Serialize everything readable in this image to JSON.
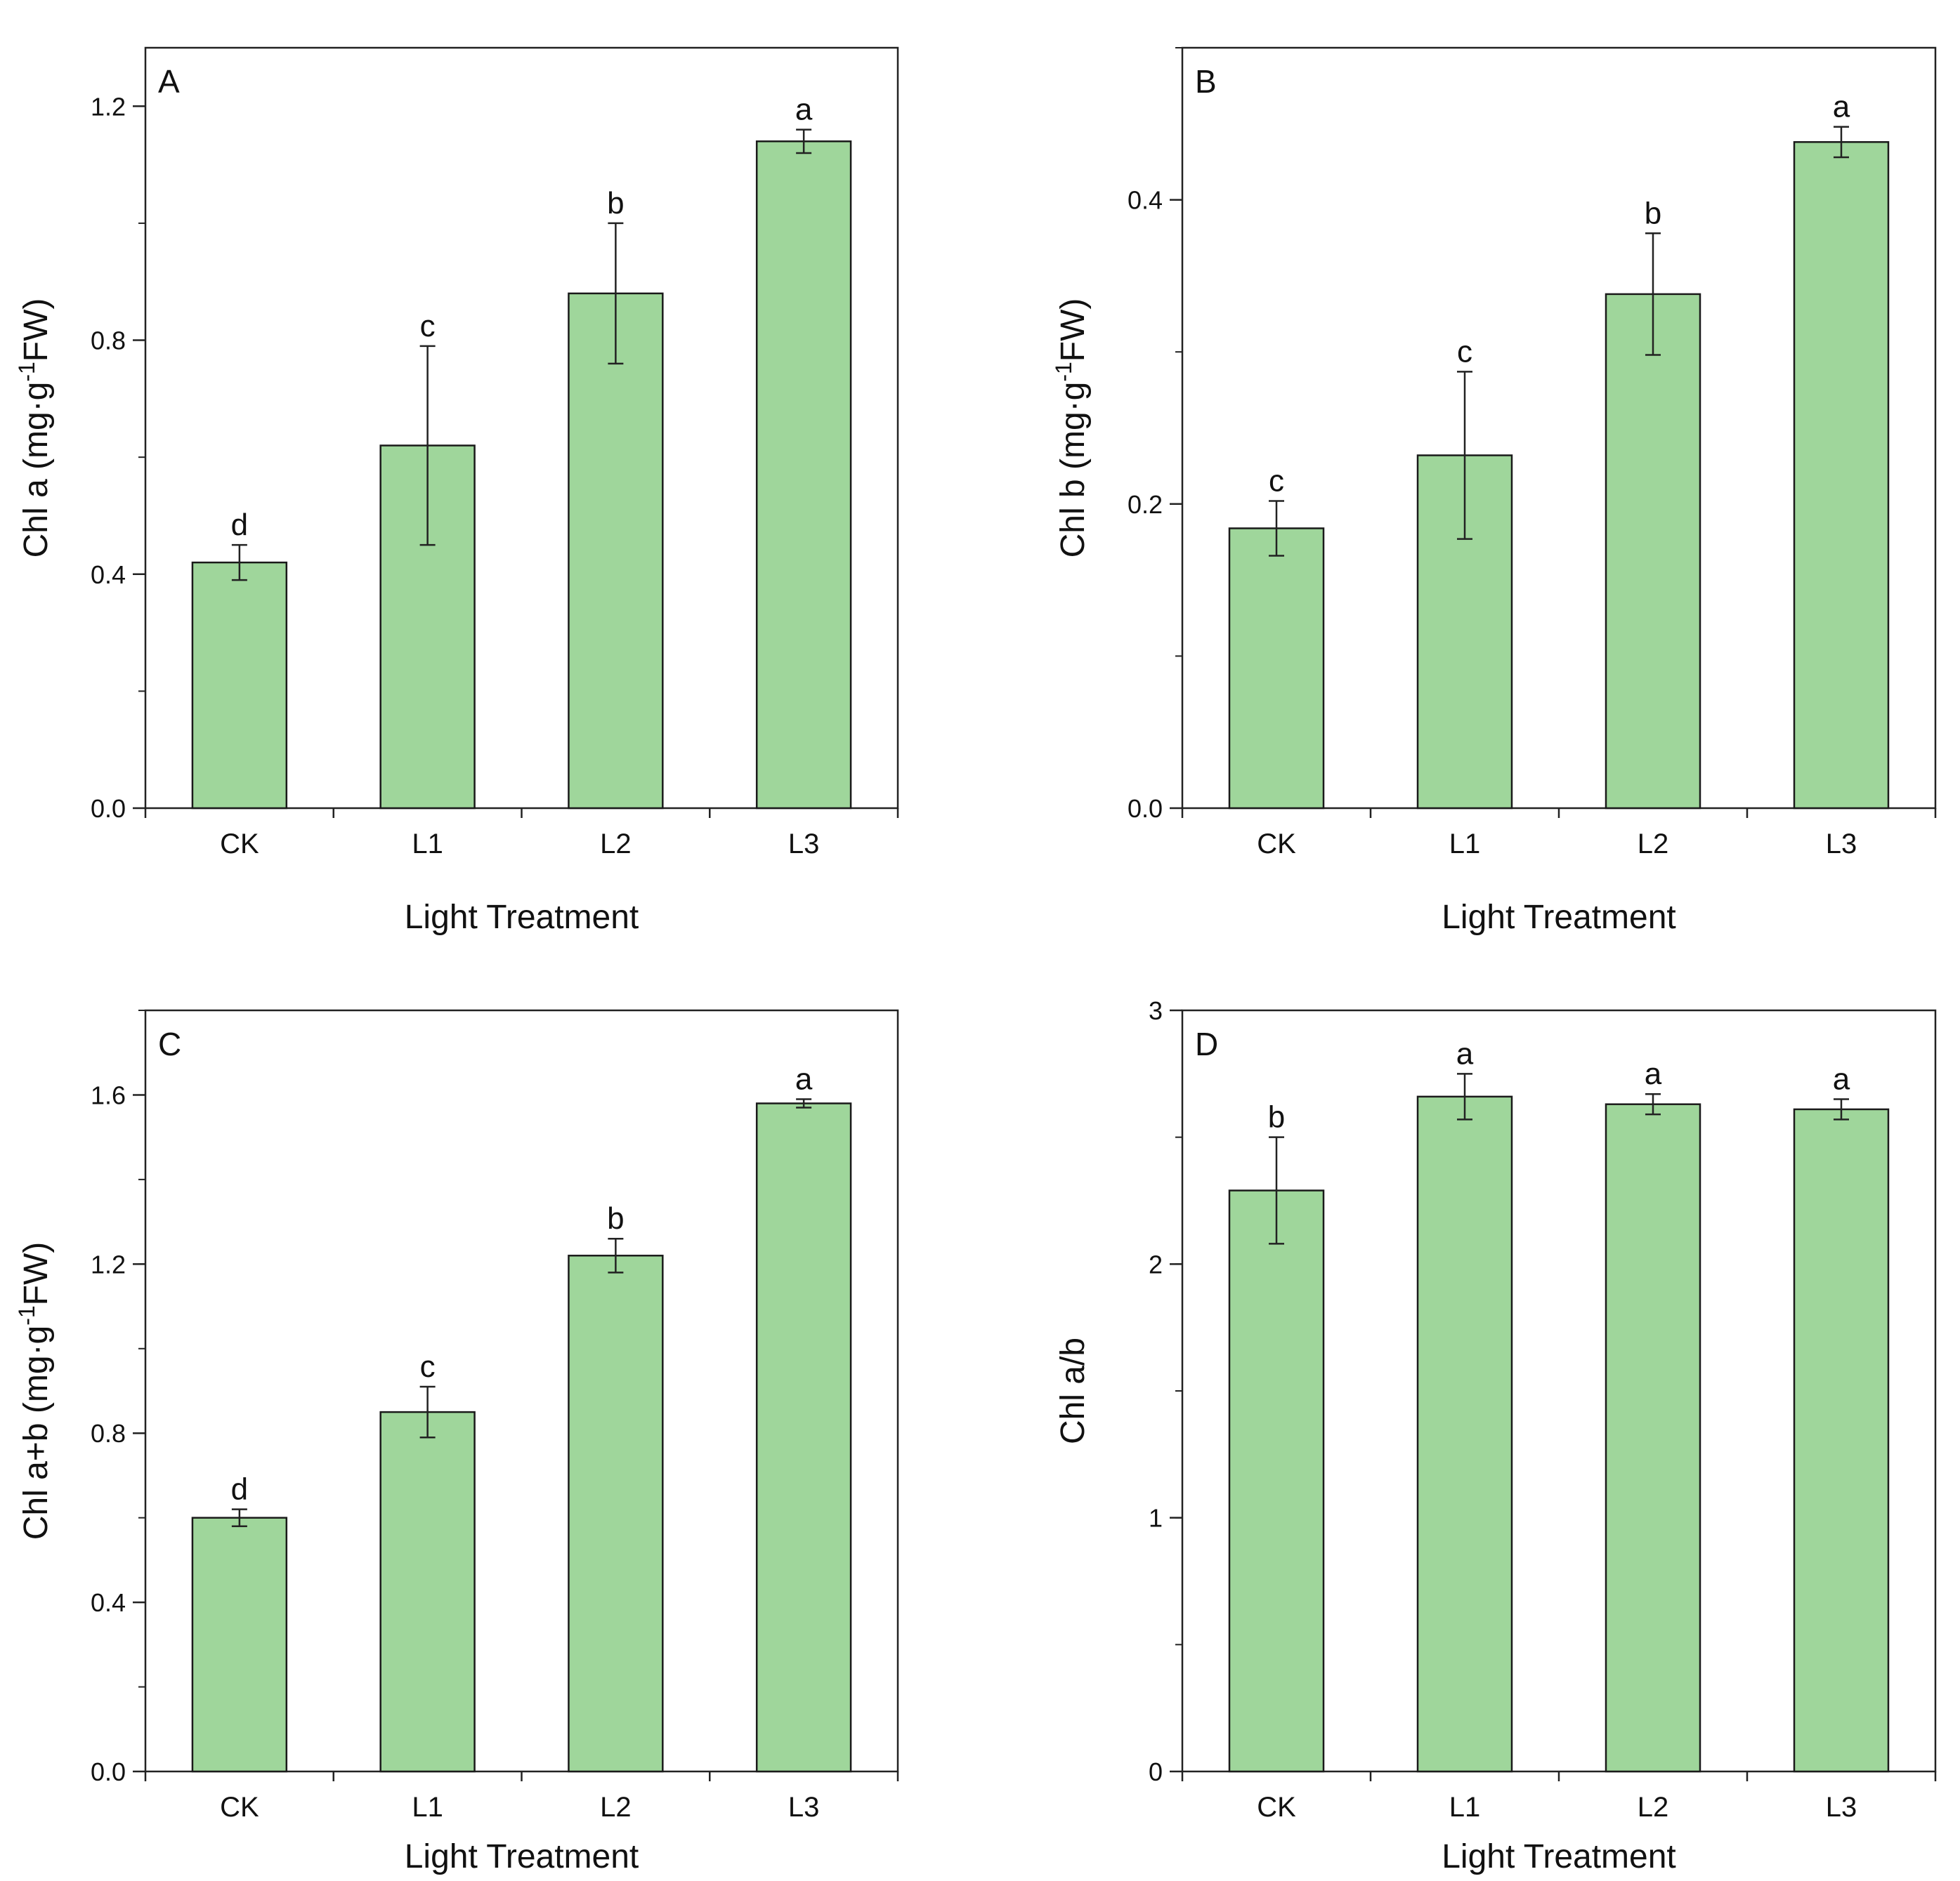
{
  "bar_color": "#9fd69b",
  "bar_stroke": "#1a1a1a",
  "chart_data": [
    {
      "type": "bar",
      "panel": "A",
      "categories": [
        "CK",
        "L1",
        "L2",
        "L3"
      ],
      "values": [
        0.42,
        0.62,
        0.88,
        1.14
      ],
      "errors": [
        0.03,
        0.17,
        0.12,
        0.02
      ],
      "significance": [
        "d",
        "c",
        "b",
        "a"
      ],
      "xlabel": "Light Treatment",
      "ylabel": "Chl a (mg·g",
      "ylabel_sup": "-1",
      "ylabel_tail": "FW)",
      "ylim": [
        0,
        1.3
      ],
      "yticks": [
        0,
        0.4,
        0.8,
        1.2
      ],
      "ytick_labels": [
        "0.0",
        "0.4",
        "0.8",
        "1.2"
      ],
      "minor_step": 0.2
    },
    {
      "type": "bar",
      "panel": "B",
      "categories": [
        "CK",
        "L1",
        "L2",
        "L3"
      ],
      "values": [
        0.184,
        0.232,
        0.338,
        0.438
      ],
      "errors": [
        0.018,
        0.055,
        0.04,
        0.01
      ],
      "significance": [
        "c",
        "c",
        "b",
        "a"
      ],
      "xlabel": "Light Treatment",
      "ylabel": "Chl b (mg·g",
      "ylabel_sup": "-1",
      "ylabel_tail": "FW)",
      "ylim": [
        0,
        0.5
      ],
      "yticks": [
        0,
        0.2,
        0.4
      ],
      "ytick_labels": [
        "0.0",
        "0.2",
        "0.4"
      ],
      "minor_step": 0.1
    },
    {
      "type": "bar",
      "panel": "C",
      "categories": [
        "CK",
        "L1",
        "L2",
        "L3"
      ],
      "values": [
        0.6,
        0.85,
        1.22,
        1.58
      ],
      "errors": [
        0.02,
        0.06,
        0.04,
        0.01
      ],
      "significance": [
        "d",
        "c",
        "b",
        "a"
      ],
      "xlabel": "Light Treatment",
      "ylabel": "Chl a+b (mg·g",
      "ylabel_sup": "-1",
      "ylabel_tail": "FW)",
      "ylim": [
        0,
        1.8
      ],
      "yticks": [
        0,
        0.4,
        0.8,
        1.2,
        1.6
      ],
      "ytick_labels": [
        "0.0",
        "0.4",
        "0.8",
        "1.2",
        "1.6"
      ],
      "minor_step": 0.2
    },
    {
      "type": "bar",
      "panel": "D",
      "categories": [
        "CK",
        "L1",
        "L2",
        "L3"
      ],
      "values": [
        2.29,
        2.66,
        2.63,
        2.61
      ],
      "errors": [
        0.21,
        0.09,
        0.04,
        0.04
      ],
      "significance": [
        "b",
        "a",
        "a",
        "a"
      ],
      "xlabel": "Light Treatment",
      "ylabel": "Chl a/b",
      "ylabel_sup": "",
      "ylabel_tail": "",
      "ylim": [
        0,
        3
      ],
      "yticks": [
        0,
        1,
        2,
        3
      ],
      "ytick_labels": [
        "0",
        "1",
        "2",
        "3"
      ],
      "minor_step": 0.5
    }
  ]
}
